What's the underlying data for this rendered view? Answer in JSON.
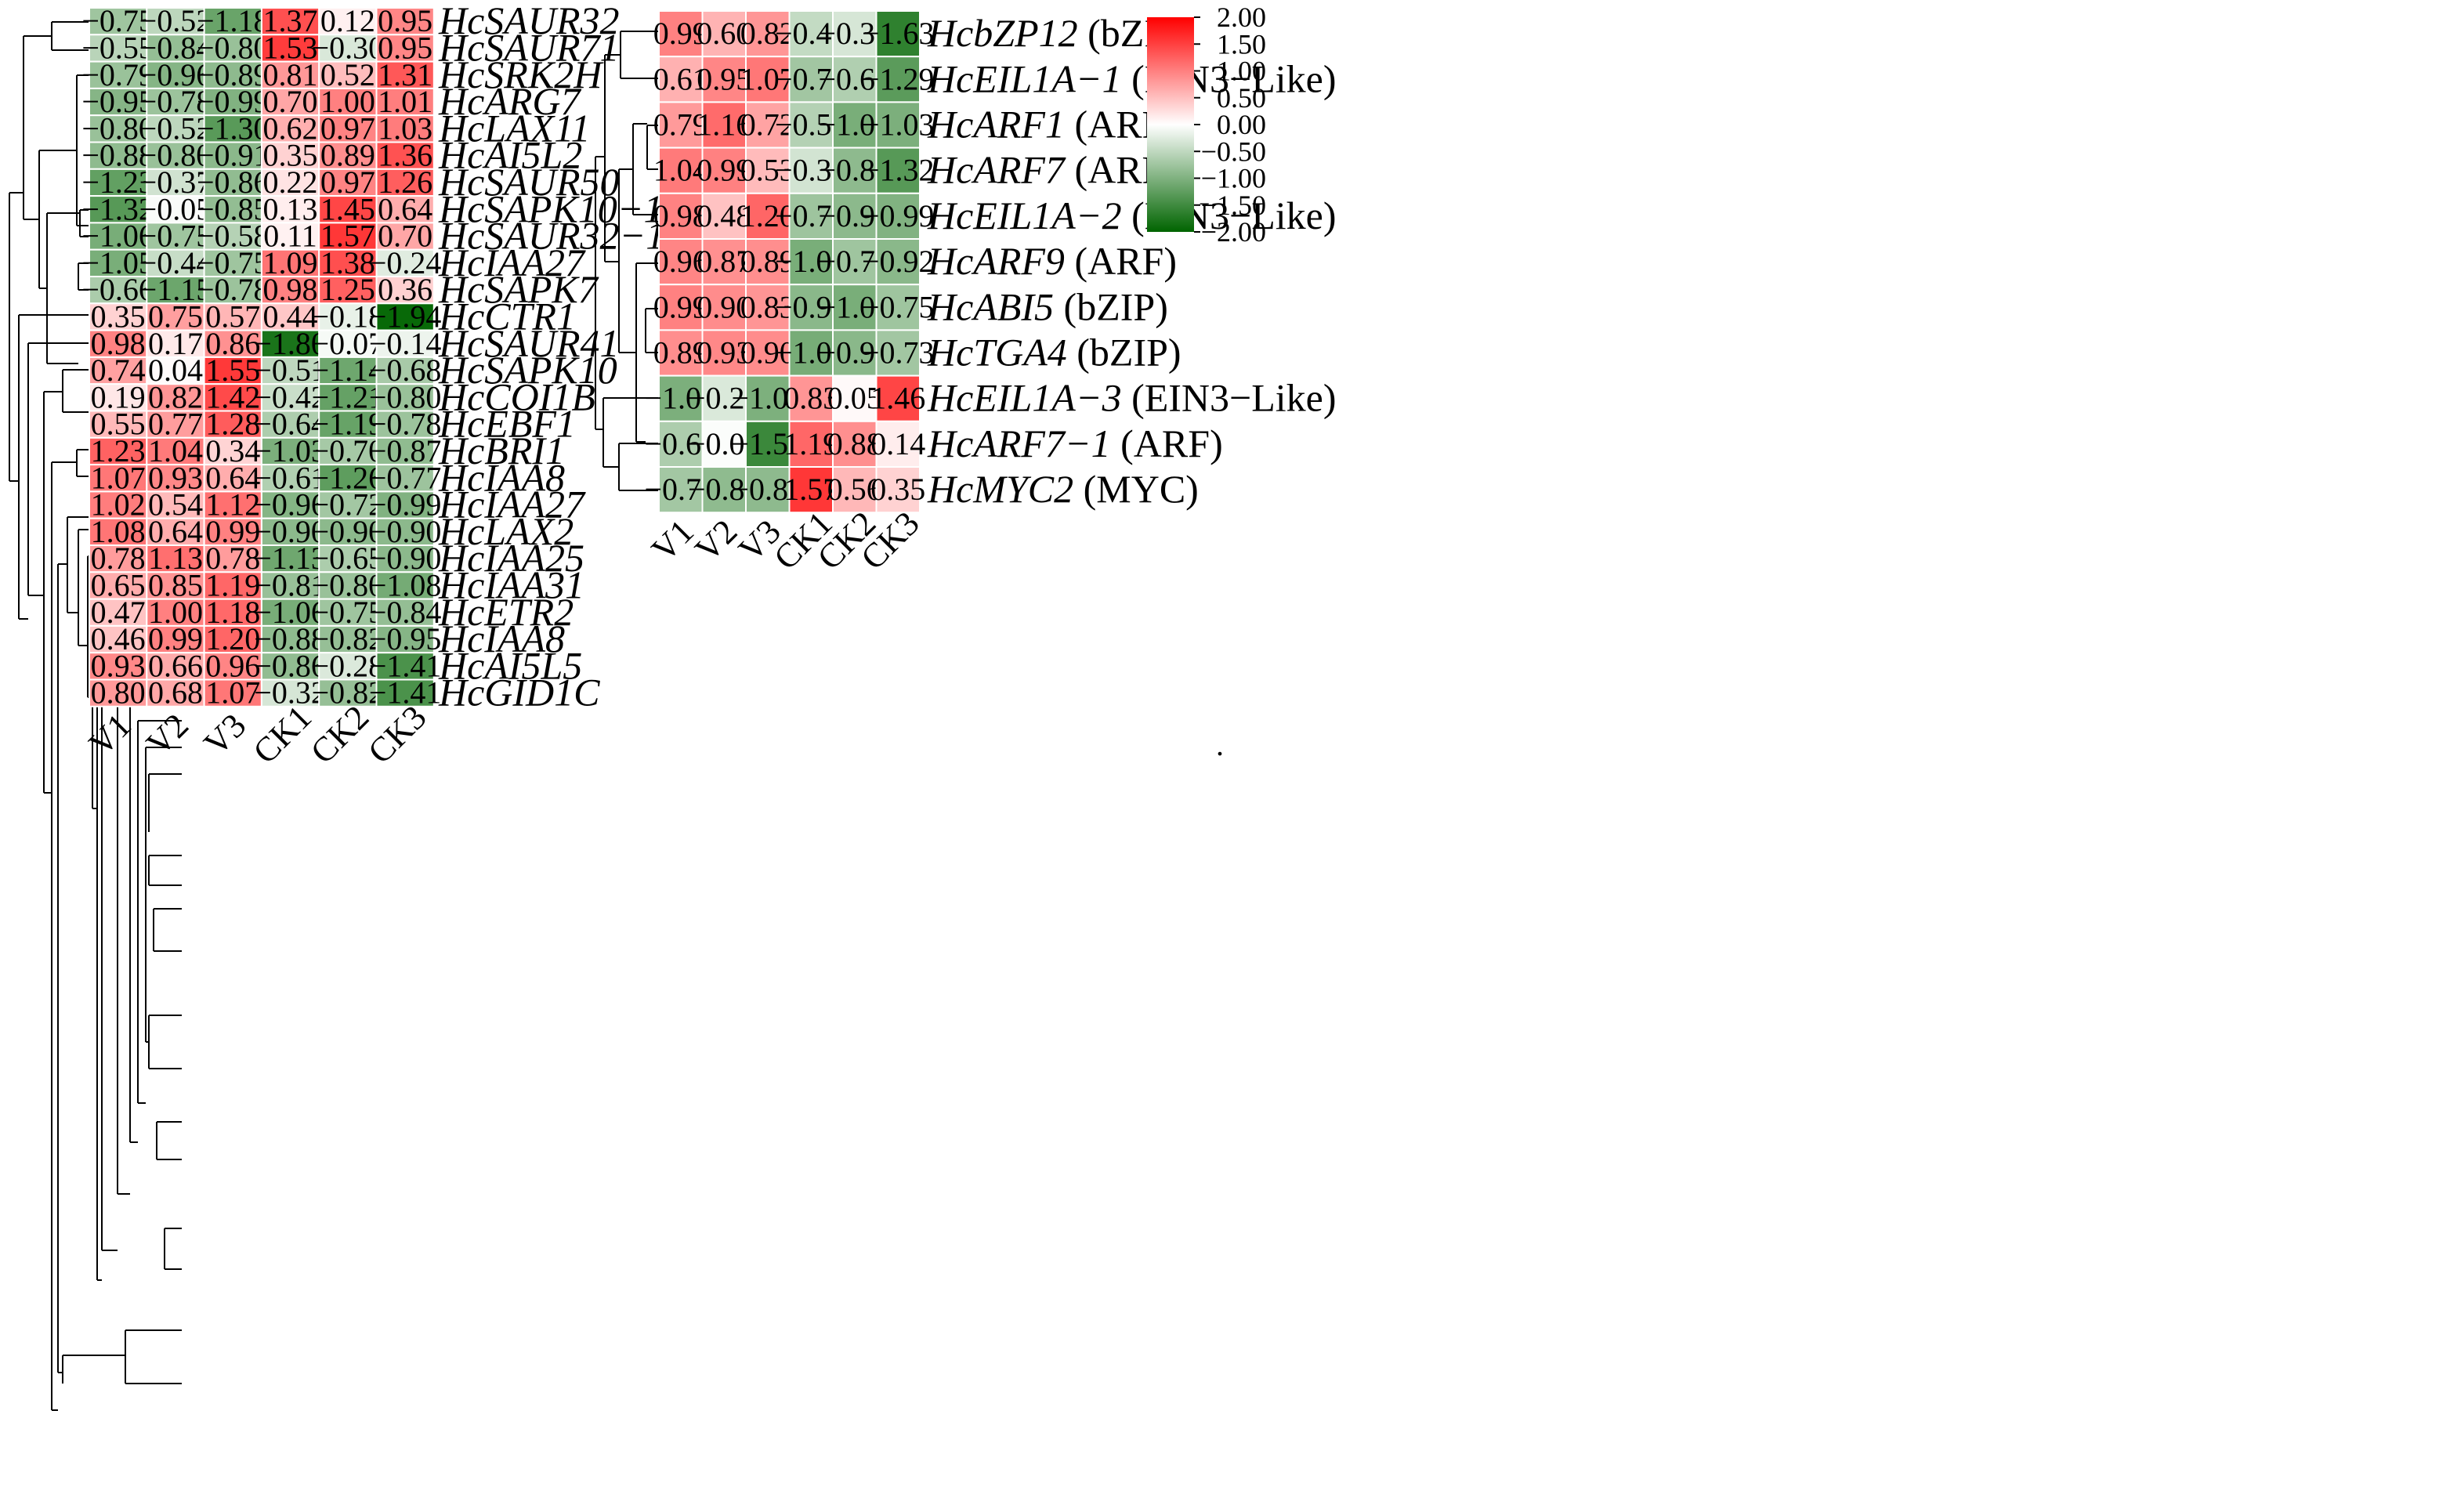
{
  "chart_data": [
    {
      "type": "heatmap",
      "title": "",
      "columns": [
        "V1",
        "V2",
        "V3",
        "CK1",
        "CK2",
        "CK3"
      ],
      "rows": [
        {
          "gene": "HcSAUR32",
          "family": "",
          "values": [
            "−0.75",
            "−0.52",
            "−1.18",
            "1.37",
            "0.12",
            "0.95"
          ]
        },
        {
          "gene": "HcSAUR71",
          "family": "",
          "values": [
            "−0.55",
            "−0.84",
            "−0.80",
            "1.53",
            "−0.30",
            "0.95"
          ]
        },
        {
          "gene": "HcSRK2H",
          "family": "",
          "values": [
            "−0.79",
            "−0.96",
            "−0.89",
            "0.81",
            "0.52",
            "1.31"
          ]
        },
        {
          "gene": "HcARG7",
          "family": "",
          "values": [
            "−0.95",
            "−0.78",
            "−0.99",
            "0.70",
            "1.00",
            "1.01"
          ]
        },
        {
          "gene": "HcLAX11",
          "family": "",
          "values": [
            "−0.80",
            "−0.52",
            "−1.30",
            "0.62",
            "0.97",
            "1.03"
          ]
        },
        {
          "gene": "HcAI5L2",
          "family": "",
          "values": [
            "−0.88",
            "−0.80",
            "−0.91",
            "0.35",
            "0.89",
            "1.36"
          ]
        },
        {
          "gene": "HcSAUR50",
          "family": "",
          "values": [
            "−1.23",
            "−0.37",
            "−0.86",
            "0.22",
            "0.97",
            "1.26"
          ]
        },
        {
          "gene": "HcSAPK10−1",
          "family": "",
          "values": [
            "−1.32",
            "−0.05",
            "−0.85",
            "0.13",
            "1.45",
            "0.64"
          ]
        },
        {
          "gene": "HcSAUR32−1",
          "family": "",
          "values": [
            "−1.06",
            "−0.75",
            "−0.58",
            "0.11",
            "1.57",
            "0.70"
          ]
        },
        {
          "gene": "HcIAA27",
          "family": "",
          "values": [
            "−1.05",
            "−0.44",
            "−0.75",
            "1.09",
            "1.38",
            "−0.24"
          ]
        },
        {
          "gene": "HcSAPK7",
          "family": "",
          "values": [
            "−0.66",
            "−1.15",
            "−0.78",
            "0.98",
            "1.25",
            "0.36"
          ]
        },
        {
          "gene": "HcCTR1",
          "family": "",
          "values": [
            "0.35",
            "0.75",
            "0.57",
            "0.44",
            "−0.18",
            "−1.94"
          ]
        },
        {
          "gene": "HcSAUR41",
          "family": "",
          "values": [
            "0.98",
            "0.17",
            "0.86",
            "−1.80",
            "−0.07",
            "−0.14"
          ]
        },
        {
          "gene": "HcSAPK10",
          "family": "",
          "values": [
            "0.74",
            "0.04",
            "1.55",
            "−0.51",
            "−1.14",
            "−0.68"
          ]
        },
        {
          "gene": "HcCOI1B",
          "family": "",
          "values": [
            "0.19",
            "0.82",
            "1.42",
            "−0.42",
            "−1.21",
            "−0.80"
          ]
        },
        {
          "gene": "HcEBF1",
          "family": "",
          "values": [
            "0.55",
            "0.77",
            "1.28",
            "−0.64",
            "−1.19",
            "−0.78"
          ]
        },
        {
          "gene": "HcBRI1",
          "family": "",
          "values": [
            "1.23",
            "1.04",
            "0.34",
            "−1.03",
            "−0.70",
            "−0.87"
          ]
        },
        {
          "gene": "HcIAA8",
          "family": "",
          "values": [
            "1.07",
            "0.93",
            "0.64",
            "−0.61",
            "−1.26",
            "−0.77"
          ]
        },
        {
          "gene": "HcIAA27",
          "family": "",
          "values": [
            "1.02",
            "0.54",
            "1.12",
            "−0.96",
            "−0.72",
            "−0.99"
          ]
        },
        {
          "gene": "HcLAX2",
          "family": "",
          "values": [
            "1.08",
            "0.64",
            "0.99",
            "−0.90",
            "−0.90",
            "−0.90"
          ]
        },
        {
          "gene": "HcIAA25",
          "family": "",
          "values": [
            "0.78",
            "1.13",
            "0.78",
            "−1.13",
            "−0.65",
            "−0.90"
          ]
        },
        {
          "gene": "HcIAA31",
          "family": "",
          "values": [
            "0.65",
            "0.85",
            "1.19",
            "−0.81",
            "−0.80",
            "−1.08"
          ]
        },
        {
          "gene": "HcETR2",
          "family": "",
          "values": [
            "0.47",
            "1.00",
            "1.18",
            "−1.06",
            "−0.75",
            "−0.84"
          ]
        },
        {
          "gene": "HcIAA8",
          "family": "",
          "values": [
            "0.46",
            "0.99",
            "1.20",
            "−0.88",
            "−0.82",
            "−0.95"
          ]
        },
        {
          "gene": "HcAI5L5",
          "family": "",
          "values": [
            "0.93",
            "0.66",
            "0.96",
            "−0.86",
            "−0.28",
            "−1.41"
          ]
        },
        {
          "gene": "HcGID1C",
          "family": "",
          "values": [
            "0.80",
            "0.68",
            "1.07",
            "−0.32",
            "−0.82",
            "−1.41"
          ]
        }
      ]
    },
    {
      "type": "heatmap",
      "title": "",
      "columns": [
        "V1",
        "V2",
        "V3",
        "CK1",
        "CK2",
        "CK3"
      ],
      "rows": [
        {
          "gene": "HcbZP12",
          "family": " (bZIP)",
          "values": [
            "0.99",
            "0.60",
            "0.82",
            "−0.47",
            "−0.32",
            "−1.63"
          ]
        },
        {
          "gene": "HcEIL1A−1",
          "family": " (EIN3−Like)",
          "values": [
            "0.61",
            "0.95",
            "1.07",
            "−0.73",
            "−0.62",
            "−1.29"
          ]
        },
        {
          "gene": "HcARF1",
          "family": " (ARF)",
          "values": [
            "0.79",
            "1.16",
            "0.72",
            "−0.59",
            "−1.05",
            "−1.03"
          ]
        },
        {
          "gene": "HcARF7",
          "family": " (ARF)",
          "values": [
            "1.04",
            "0.99",
            "0.53",
            "−0.35",
            "−0.89",
            "−1.32"
          ]
        },
        {
          "gene": "HcEIL1A−2",
          "family": " (EIN3−Like)",
          "values": [
            "0.98",
            "0.48",
            "1.20",
            "−0.76",
            "−0.90",
            "−0.99"
          ]
        },
        {
          "gene": "HcARF9",
          "family": " (ARF)",
          "values": [
            "0.96",
            "0.87",
            "0.89",
            "−1.05",
            "−0.75",
            "−0.92"
          ]
        },
        {
          "gene": "HcABI5",
          "family": " (bZIP)",
          "values": [
            "0.99",
            "0.90",
            "0.83",
            "−0.92",
            "−1.05",
            "−0.75"
          ]
        },
        {
          "gene": "HcTGA4",
          "family": " (bZIP)",
          "values": [
            "0.89",
            "0.93",
            "0.90",
            "−1.07",
            "−0.92",
            "−0.73"
          ]
        },
        {
          "gene": "HcEIL1A−3",
          "family": " (EIN3−Like)",
          "values": [
            "−1.03",
            "−0.29",
            "−1.02",
            "0.83",
            "0.05",
            "1.46"
          ]
        },
        {
          "gene": "HcARF7−1",
          "family": " (ARF)",
          "values": [
            "−0.64",
            "−0.03",
            "−1.54",
            "1.19",
            "0.88",
            "0.14"
          ]
        },
        {
          "gene": "HcMYC2",
          "family": " (MYC)",
          "values": [
            "−0.72",
            "−0.88",
            "−0.89",
            "1.57",
            "0.56",
            "0.35"
          ]
        }
      ]
    }
  ],
  "colorbar": {
    "range": [
      -2.0,
      2.0
    ],
    "ticks": [
      "2.00",
      "1.50",
      "1.00",
      "0.50",
      "0.00",
      "−0.50",
      "−1.00",
      "−1.50",
      "−2.00"
    ],
    "colors": {
      "high": "#ff0000",
      "mid": "#ffffff",
      "low": "#006400"
    }
  },
  "trailing_mark": "."
}
